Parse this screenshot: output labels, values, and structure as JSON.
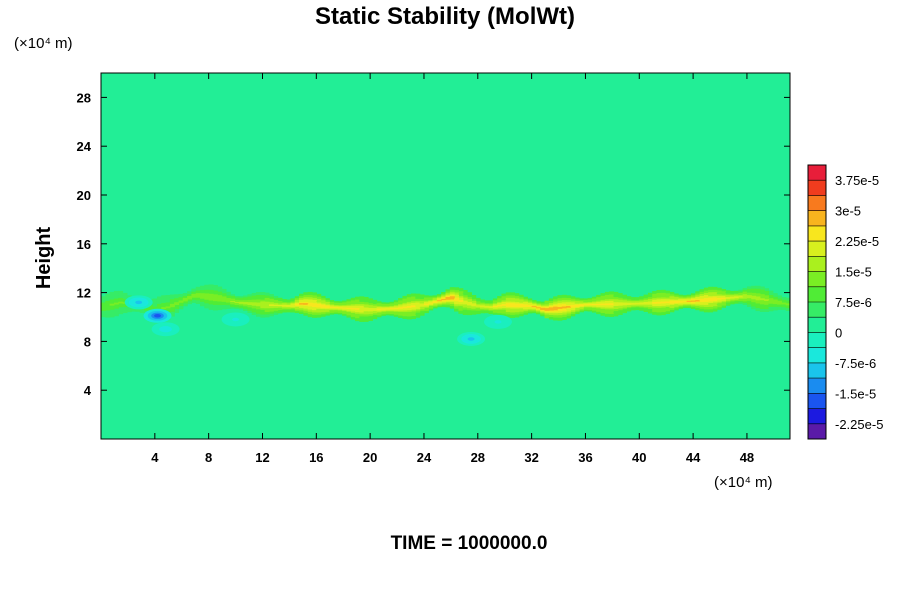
{
  "chart_data": {
    "type": "heatmap",
    "title": "Static Stability (MolWt)",
    "xlabel": "",
    "ylabel": "Height",
    "x_unit_label": "(×10⁴ m)",
    "y_unit_label": "(×10⁴ m)",
    "footer": "TIME = 1000000.0",
    "xlim": [
      0,
      51.2
    ],
    "ylim": [
      0,
      30
    ],
    "x_ticks": [
      4,
      8,
      12,
      16,
      20,
      24,
      28,
      32,
      36,
      40,
      44,
      48
    ],
    "y_ticks": [
      4,
      8,
      12,
      16,
      20,
      24,
      28
    ],
    "x_tick_labels": [
      "4",
      "8",
      "12",
      "16",
      "20",
      "24",
      "28",
      "32",
      "36",
      "40",
      "44",
      "48"
    ],
    "y_tick_labels": [
      "4",
      "8",
      "12",
      "16",
      "20",
      "24",
      "28"
    ],
    "colorbar": {
      "min": -2.625e-05,
      "max": 4.125e-05,
      "step": 3.75e-06,
      "label_values": [
        -2.25e-05,
        -1.5e-05,
        -7.5e-06,
        0,
        7.5e-06,
        1.5e-05,
        2.25e-05,
        3e-05,
        3.75e-05
      ],
      "labels": [
        "-2.25e-5",
        "-1.5e-5",
        "-7.5e-6",
        "0",
        "7.5e-6",
        "1.5e-5",
        "2.25e-5",
        "3e-5",
        "3.75e-5"
      ],
      "colors": [
        "#5a1aa8",
        "#1c1ae0",
        "#1a55f0",
        "#1a8cf0",
        "#1ac4ec",
        "#1ae8dc",
        "#1aefbe",
        "#22ee96",
        "#36ec66",
        "#50ec36",
        "#7aee24",
        "#aaf01e",
        "#d8f01e",
        "#f8e61e",
        "#f8b41e",
        "#f87a1e",
        "#f03c1e",
        "#e81e3a"
      ]
    },
    "background_value": 2e-06,
    "upper_layer": {
      "y_range": [
        26,
        30
      ],
      "value": 1.5e-06
    },
    "band": {
      "x": [
        0,
        1.5,
        3,
        4,
        5,
        7,
        9,
        10,
        12,
        14,
        15,
        17,
        20,
        22,
        24,
        25,
        26,
        27,
        28,
        29,
        30,
        32,
        33,
        36,
        40,
        44,
        46,
        48,
        51.2
      ],
      "y_center": [
        10.8,
        11.2,
        10.9,
        10.6,
        10.8,
        11.8,
        11.5,
        11.2,
        11.0,
        10.9,
        11.1,
        10.8,
        10.6,
        10.7,
        11.0,
        11.3,
        11.6,
        11.2,
        10.9,
        10.8,
        11.0,
        10.9,
        10.6,
        11.0,
        11.1,
        11.3,
        11.5,
        11.7,
        11.0
      ],
      "peak_value": [
        1.05e-05,
        1.2e-05,
        1.1e-05,
        1e-05,
        1.2e-05,
        1.5e-05,
        1.4e-05,
        1.6e-05,
        1.8e-05,
        2.1e-05,
        2.7e-05,
        2.4e-05,
        2.2e-05,
        2.4e-05,
        2.2e-05,
        2.6e-05,
        2.9e-05,
        2.2e-05,
        2e-05,
        2.2e-05,
        2.4e-05,
        2.6e-05,
        3e-05,
        2.4e-05,
        2.1e-05,
        2.7e-05,
        2.4e-05,
        1.8e-05,
        1.2e-05
      ]
    },
    "negative_spots": [
      {
        "x": 4.2,
        "y": 10.1,
        "value": -1.8e-05
      },
      {
        "x": 2.8,
        "y": 11.2,
        "value": -8e-06
      },
      {
        "x": 4.8,
        "y": 9.0,
        "value": -6e-06
      },
      {
        "x": 10.0,
        "y": 9.8,
        "value": -4e-06
      },
      {
        "x": 27.5,
        "y": 8.2,
        "value": -9e-06
      },
      {
        "x": 29.5,
        "y": 9.6,
        "value": -5e-06
      }
    ]
  }
}
